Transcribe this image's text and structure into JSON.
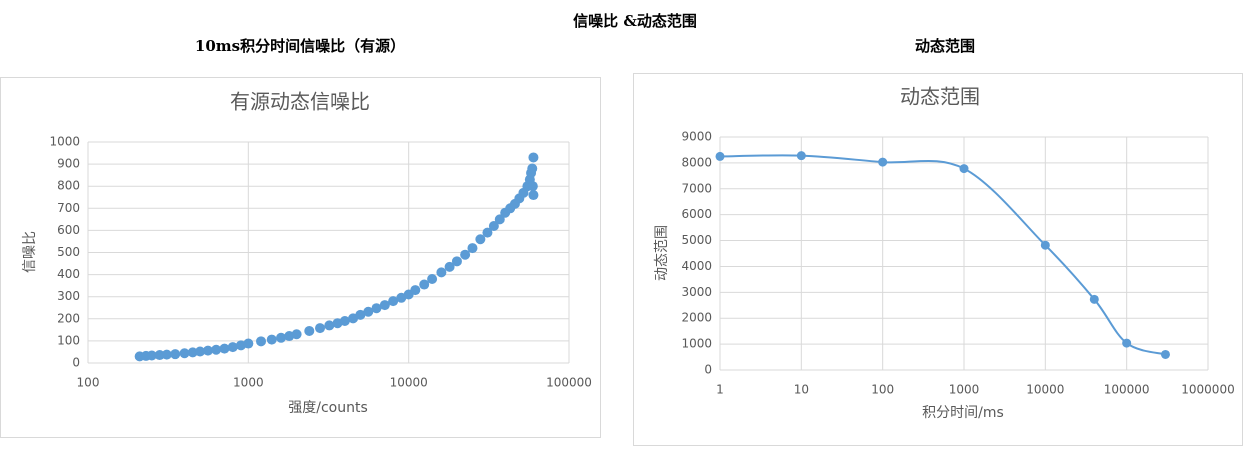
{
  "header": {
    "title": "信噪比 &动态范围"
  },
  "chart_data": [
    {
      "type": "scatter",
      "caption": "10ms积分时间信噪比（有源）",
      "title": "有源动态信噪比",
      "x_label": "强度/counts",
      "y_label": "信噪比",
      "color": "#5b9bd5",
      "xscale": "log",
      "grid": true,
      "x": [
        210,
        230,
        250,
        280,
        310,
        350,
        400,
        450,
        500,
        560,
        630,
        710,
        800,
        900,
        1000,
        1200,
        1400,
        1600,
        1800,
        2000,
        2400,
        2800,
        3200,
        3600,
        4000,
        4500,
        5000,
        5600,
        6300,
        7100,
        8000,
        9000,
        10000,
        11000,
        12500,
        14000,
        16000,
        18000,
        20000,
        22500,
        25000,
        28000,
        31000,
        34000,
        37000,
        40000,
        43000,
        46000,
        49000,
        52000,
        55000,
        57000,
        58000,
        59000,
        60000,
        60000,
        59500
      ],
      "values": [
        30,
        32,
        34,
        36,
        38,
        40,
        44,
        48,
        52,
        56,
        60,
        65,
        72,
        80,
        88,
        98,
        106,
        114,
        122,
        130,
        145,
        158,
        170,
        180,
        190,
        202,
        218,
        232,
        248,
        262,
        280,
        295,
        310,
        330,
        355,
        380,
        410,
        435,
        460,
        490,
        520,
        560,
        590,
        620,
        650,
        680,
        700,
        720,
        745,
        770,
        800,
        830,
        860,
        880,
        930,
        760,
        800
      ],
      "xlim": [
        100,
        100000
      ],
      "xticks": [
        100,
        1000,
        10000,
        100000
      ],
      "ylim": [
        0,
        1000
      ],
      "yticks": [
        0,
        100,
        200,
        300,
        400,
        500,
        600,
        700,
        800,
        900,
        1000
      ]
    },
    {
      "type": "line",
      "caption": "动态范围",
      "title": "动态范围",
      "x_label": "积分时间/ms",
      "y_label": "动态范围",
      "color": "#5b9bd5",
      "xscale": "log",
      "grid": true,
      "smooth": true,
      "x": [
        1,
        10,
        100,
        1000,
        10000,
        40000,
        100000,
        300000
      ],
      "values": [
        8250,
        8280,
        8030,
        7780,
        4820,
        2730,
        1040,
        600
      ],
      "xlim": [
        1,
        1000000
      ],
      "xticks": [
        1,
        10,
        100,
        1000,
        10000,
        100000,
        1000000
      ],
      "ylim": [
        0,
        9000
      ],
      "yticks": [
        0,
        1000,
        2000,
        3000,
        4000,
        5000,
        6000,
        7000,
        8000,
        9000
      ]
    }
  ]
}
